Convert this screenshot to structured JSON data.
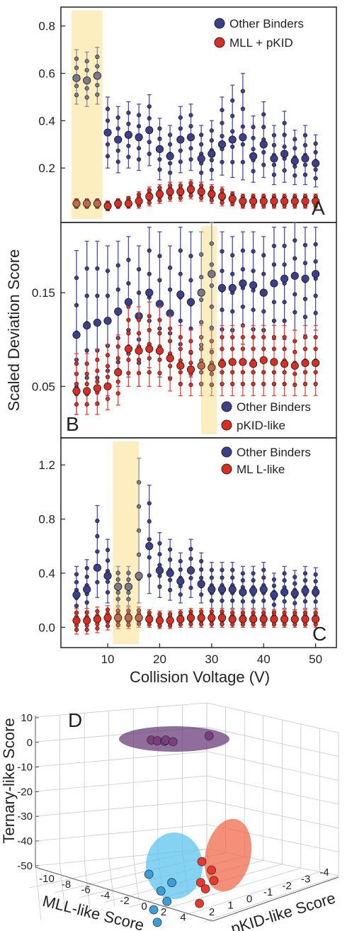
{
  "chart_data": [
    {
      "type": "scatter",
      "panel": "A",
      "ylabel": "",
      "xlabel": "",
      "yticks": [
        "0.8",
        "0.6",
        "0.4",
        "0.2"
      ],
      "ytick_values": [
        0.8,
        0.6,
        0.4,
        0.2
      ],
      "ylim": [
        -0.03,
        0.88
      ],
      "xlim": [
        1,
        54
      ],
      "highlight": [
        3,
        9
      ],
      "series": [
        {
          "name": "Other Binders",
          "color": "#3c3f8a",
          "x": [
            4,
            6,
            8,
            10,
            12,
            14,
            16,
            18,
            20,
            22,
            24,
            26,
            28,
            30,
            32,
            34,
            36,
            38,
            40,
            42,
            44,
            46,
            48,
            50
          ],
          "mean": [
            0.58,
            0.57,
            0.59,
            0.35,
            0.32,
            0.34,
            0.33,
            0.36,
            0.28,
            0.25,
            0.32,
            0.33,
            0.24,
            0.26,
            0.3,
            0.32,
            0.33,
            0.25,
            0.3,
            0.24,
            0.26,
            0.23,
            0.24,
            0.22
          ],
          "lo": [
            0.47,
            0.46,
            0.47,
            0.2,
            0.18,
            0.2,
            0.19,
            0.21,
            0.15,
            0.14,
            0.18,
            0.19,
            0.14,
            0.15,
            0.17,
            0.16,
            0.15,
            0.14,
            0.16,
            0.13,
            0.14,
            0.13,
            0.13,
            0.12
          ],
          "hi": [
            0.7,
            0.69,
            0.71,
            0.5,
            0.46,
            0.48,
            0.47,
            0.51,
            0.41,
            0.38,
            0.46,
            0.47,
            0.38,
            0.4,
            0.5,
            0.55,
            0.6,
            0.42,
            0.48,
            0.38,
            0.44,
            0.36,
            0.38,
            0.34
          ]
        },
        {
          "name": "MLL + pKID",
          "color": "#d92e24",
          "x": [
            4,
            6,
            8,
            10,
            12,
            14,
            16,
            18,
            20,
            22,
            24,
            26,
            28,
            30,
            32,
            34,
            36,
            38,
            40,
            42,
            44,
            46,
            48,
            50
          ],
          "mean": [
            0.05,
            0.05,
            0.05,
            0.04,
            0.05,
            0.05,
            0.06,
            0.08,
            0.09,
            0.1,
            0.1,
            0.11,
            0.1,
            0.09,
            0.08,
            0.07,
            0.06,
            0.06,
            0.06,
            0.06,
            0.06,
            0.06,
            0.06,
            0.06
          ],
          "lo": [
            0.03,
            0.03,
            0.03,
            0.02,
            0.03,
            0.03,
            0.03,
            0.04,
            0.05,
            0.06,
            0.06,
            0.07,
            0.06,
            0.05,
            0.04,
            0.04,
            0.03,
            0.03,
            0.03,
            0.03,
            0.03,
            0.03,
            0.03,
            0.03
          ],
          "hi": [
            0.07,
            0.07,
            0.07,
            0.06,
            0.07,
            0.08,
            0.1,
            0.12,
            0.13,
            0.14,
            0.14,
            0.15,
            0.14,
            0.13,
            0.12,
            0.1,
            0.09,
            0.09,
            0.09,
            0.09,
            0.09,
            0.09,
            0.09,
            0.09
          ]
        }
      ]
    },
    {
      "type": "scatter",
      "panel": "B",
      "ylabel": "Scaled Deviation Score",
      "xlabel": "",
      "yticks": [
        "0.15",
        "0.05"
      ],
      "ytick_values": [
        0.15,
        0.05
      ],
      "ylim": [
        -0.005,
        0.225
      ],
      "xlim": [
        1,
        54
      ],
      "highlight": [
        28,
        31
      ],
      "series": [
        {
          "name": "Other Binders",
          "color": "#3c3f8a",
          "x": [
            4,
            6,
            8,
            10,
            12,
            14,
            16,
            18,
            20,
            22,
            24,
            26,
            28,
            30,
            32,
            34,
            36,
            38,
            40,
            42,
            44,
            46,
            48,
            50
          ],
          "mean": [
            0.105,
            0.115,
            0.118,
            0.12,
            0.13,
            0.14,
            0.125,
            0.15,
            0.138,
            0.128,
            0.148,
            0.14,
            0.15,
            0.17,
            0.155,
            0.155,
            0.16,
            0.158,
            0.15,
            0.16,
            0.165,
            0.168,
            0.165,
            0.17
          ],
          "lo": [
            0.02,
            0.03,
            0.03,
            0.04,
            0.05,
            0.06,
            0.05,
            0.07,
            0.06,
            0.06,
            0.07,
            0.06,
            0.07,
            0.09,
            0.09,
            0.09,
            0.095,
            0.09,
            0.09,
            0.1,
            0.1,
            0.11,
            0.105,
            0.11
          ],
          "hi": [
            0.195,
            0.205,
            0.205,
            0.2,
            0.205,
            0.21,
            0.2,
            0.22,
            0.215,
            0.2,
            0.22,
            0.215,
            0.215,
            0.225,
            0.215,
            0.21,
            0.215,
            0.215,
            0.21,
            0.22,
            0.22,
            0.225,
            0.22,
            0.22
          ]
        },
        {
          "name": "pKID-like",
          "color": "#d92e24",
          "x": [
            4,
            6,
            8,
            10,
            12,
            14,
            16,
            18,
            20,
            22,
            24,
            26,
            28,
            30,
            32,
            34,
            36,
            38,
            40,
            42,
            44,
            46,
            48,
            50
          ],
          "mean": [
            0.045,
            0.045,
            0.048,
            0.05,
            0.065,
            0.09,
            0.088,
            0.09,
            0.088,
            0.08,
            0.072,
            0.068,
            0.072,
            0.07,
            0.074,
            0.076,
            0.076,
            0.074,
            0.078,
            0.076,
            0.074,
            0.072,
            0.075,
            0.075
          ],
          "lo": [
            0.02,
            0.02,
            0.02,
            0.025,
            0.03,
            0.05,
            0.05,
            0.05,
            0.05,
            0.045,
            0.04,
            0.04,
            0.04,
            0.04,
            0.04,
            0.04,
            0.04,
            0.04,
            0.04,
            0.04,
            0.04,
            0.04,
            0.04,
            0.04
          ],
          "hi": [
            0.085,
            0.085,
            0.09,
            0.095,
            0.105,
            0.135,
            0.135,
            0.14,
            0.135,
            0.125,
            0.115,
            0.11,
            0.115,
            0.11,
            0.115,
            0.115,
            0.115,
            0.115,
            0.115,
            0.115,
            0.115,
            0.11,
            0.115,
            0.115
          ]
        }
      ]
    },
    {
      "type": "scatter",
      "panel": "C",
      "ylabel": "",
      "xlabel": "Collision Voltage (V)",
      "yticks": [
        "1.2",
        "0.8",
        "0.4",
        "0.0"
      ],
      "ytick_values": [
        1.2,
        0.8,
        0.4,
        0.0
      ],
      "xticks": [
        "10",
        "20",
        "30",
        "40",
        "50"
      ],
      "xtick_values": [
        10,
        20,
        30,
        40,
        50
      ],
      "ylim": [
        -0.15,
        1.4
      ],
      "xlim": [
        1,
        54
      ],
      "highlight": [
        11,
        16
      ],
      "series": [
        {
          "name": "Other Binders",
          "color": "#3c3f8a",
          "x": [
            4,
            6,
            8,
            10,
            12,
            14,
            16,
            18,
            20,
            22,
            24,
            26,
            28,
            30,
            32,
            34,
            36,
            38,
            40,
            42,
            44,
            46,
            48,
            50
          ],
          "mean": [
            0.24,
            0.28,
            0.44,
            0.38,
            0.3,
            0.3,
            0.38,
            0.6,
            0.42,
            0.4,
            0.34,
            0.42,
            0.32,
            0.28,
            0.28,
            0.28,
            0.26,
            0.27,
            0.28,
            0.24,
            0.26,
            0.25,
            0.27,
            0.26
          ],
          "lo": [
            0.1,
            0.12,
            0.22,
            0.18,
            0.16,
            0.16,
            0.18,
            0.25,
            0.22,
            0.2,
            0.18,
            0.22,
            0.18,
            0.14,
            0.14,
            0.14,
            0.14,
            0.14,
            0.14,
            0.12,
            0.14,
            0.13,
            0.14,
            0.14
          ],
          "hi": [
            0.45,
            0.5,
            0.9,
            0.65,
            0.45,
            0.45,
            1.25,
            1.05,
            0.7,
            0.65,
            0.55,
            0.65,
            0.55,
            0.48,
            0.48,
            0.48,
            0.45,
            0.45,
            0.48,
            0.4,
            0.45,
            0.42,
            0.45,
            0.44
          ]
        },
        {
          "name": "ML L-like",
          "color": "#d92e24",
          "x": [
            4,
            6,
            8,
            10,
            12,
            14,
            16,
            18,
            20,
            22,
            24,
            26,
            28,
            30,
            32,
            34,
            36,
            38,
            40,
            42,
            44,
            46,
            48,
            50
          ],
          "mean": [
            0.05,
            0.05,
            0.06,
            0.07,
            0.07,
            0.07,
            0.07,
            0.06,
            0.05,
            0.05,
            0.06,
            0.07,
            0.07,
            0.07,
            0.07,
            0.06,
            0.06,
            0.06,
            0.06,
            0.06,
            0.06,
            0.06,
            0.06,
            0.06
          ],
          "lo": [
            -0.05,
            -0.05,
            -0.04,
            -0.02,
            -0.01,
            -0.01,
            0.0,
            0.0,
            -0.01,
            -0.01,
            0.0,
            0.0,
            0.0,
            0.0,
            0.0,
            0.0,
            0.0,
            0.0,
            0.0,
            0.0,
            0.0,
            0.0,
            0.0,
            0.0
          ],
          "hi": [
            0.14,
            0.14,
            0.15,
            0.16,
            0.15,
            0.15,
            0.15,
            0.13,
            0.12,
            0.12,
            0.13,
            0.14,
            0.14,
            0.14,
            0.14,
            0.13,
            0.13,
            0.13,
            0.13,
            0.13,
            0.13,
            0.13,
            0.13,
            0.13
          ]
        }
      ]
    },
    {
      "type": "scatter",
      "panel": "D",
      "zlabel": "Ternary-like Score",
      "xlabel": "MLL-like Score",
      "ylabel": "pKID-like Score",
      "zticks": [
        "10",
        "0",
        "-10",
        "-20",
        "-30",
        "-40",
        "-50"
      ],
      "xticks": [
        "-10",
        "-8",
        "-6",
        "-4",
        "-2",
        "0",
        "2",
        "4"
      ],
      "yticks": [
        "2",
        "1",
        "0",
        "-1",
        "-2",
        "-3",
        "-4"
      ],
      "clusters": [
        {
          "color": "#7a3e7e",
          "fill": "#6a3d7a",
          "points": [
            [
              0.8,
              0.6
            ],
            [
              1.3,
              0.4
            ],
            [
              1.9,
              0.3
            ],
            [
              2.0,
              0.6
            ],
            [
              2.6,
              0.2
            ],
            [
              5.6,
              1.6
            ]
          ]
        },
        {
          "color": "#3a9fd6",
          "fill": "#5cc3ee",
          "points": [
            [
              0.6,
              -31.5
            ],
            [
              1.6,
              -35.5
            ],
            [
              1.0,
              -40.0
            ],
            [
              1.3,
              -43.0
            ],
            [
              2.5,
              -33.5
            ],
            [
              2.1,
              -38.0
            ]
          ]
        },
        {
          "color": "#e8392e",
          "fill": "#f06a4e",
          "points": [
            [
              5.0,
              -28.5
            ],
            [
              5.8,
              -30.5
            ],
            [
              4.9,
              -33.5
            ],
            [
              5.3,
              -35.0
            ],
            [
              4.8,
              -38.5
            ],
            [
              6.0,
              -33.0
            ]
          ]
        }
      ]
    }
  ],
  "panel_letters": {
    "a": "A",
    "b": "B",
    "c": "C",
    "d": "D"
  }
}
